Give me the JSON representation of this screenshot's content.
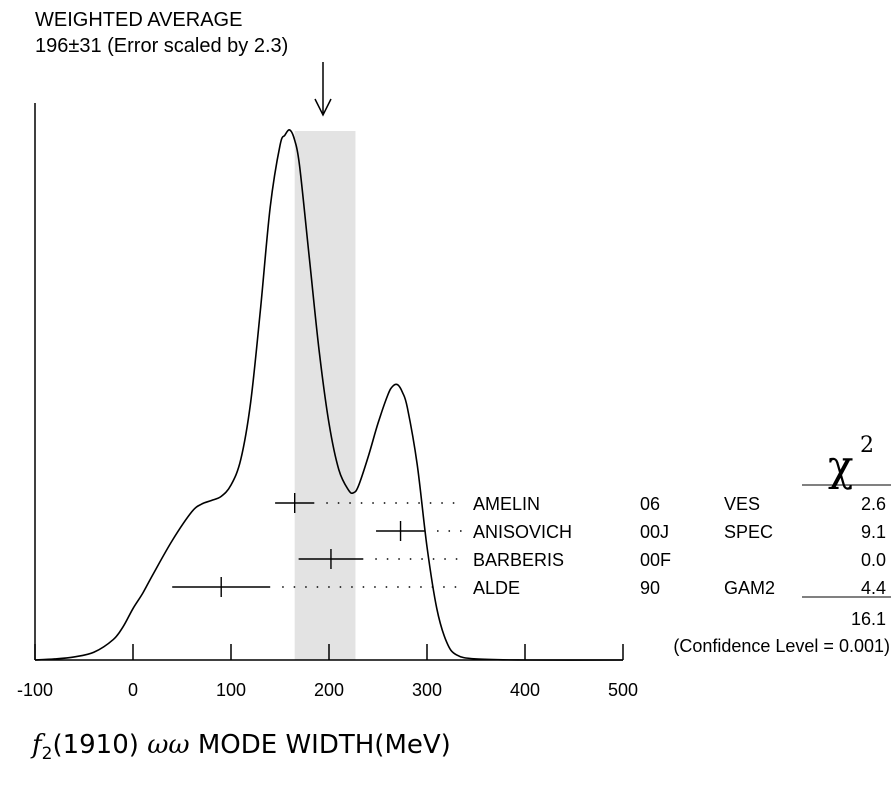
{
  "chart_data": {
    "type": "ideogram",
    "title": "WEIGHTED AVERAGE",
    "subtitle": "196±31 (Error scaled by 2.3)",
    "xlabel": {
      "particle_symbol": "f",
      "particle_subscript": "2",
      "particle_mass": "(1910)",
      "mode": "ωω",
      "text": "MODE WIDTH(MeV)"
    },
    "xlim": [
      -100,
      500
    ],
    "x_ticks": [
      -100,
      0,
      100,
      200,
      300,
      400,
      500
    ],
    "x_tick_labels": [
      "-100",
      "0",
      "100",
      "200",
      "300",
      "400",
      "500"
    ],
    "weighted_average": {
      "value": 196,
      "error": 31,
      "band": [
        165,
        227
      ]
    },
    "chi2_header": "χ",
    "chi2_exponent": "2",
    "measurements": [
      {
        "author": "AMELIN",
        "year": "06",
        "experiment": "VES",
        "value": 165,
        "error": 20,
        "chi2": "2.6"
      },
      {
        "author": "ANISOVICH",
        "year": "00J",
        "experiment": "SPEC",
        "value": 273,
        "error": 25,
        "chi2": "9.1"
      },
      {
        "author": "BARBERIS",
        "year": "00F",
        "experiment": "",
        "value": 202,
        "error": 33,
        "chi2": "0.0"
      },
      {
        "author": "ALDE",
        "year": "90",
        "experiment": "GAM2",
        "value": 90,
        "error": 50,
        "chi2": "4.4"
      }
    ],
    "chi2_total": "16.1",
    "confidence_level_text": "(Confidence Level = 0.001)",
    "curve_samples": [
      [
        -100,
        0.0
      ],
      [
        -80,
        0.002
      ],
      [
        -60,
        0.006
      ],
      [
        -40,
        0.015
      ],
      [
        -20,
        0.04
      ],
      [
        -10,
        0.065
      ],
      [
        0,
        0.1
      ],
      [
        10,
        0.13
      ],
      [
        20,
        0.165
      ],
      [
        40,
        0.232
      ],
      [
        60,
        0.288
      ],
      [
        70,
        0.303
      ],
      [
        80,
        0.31
      ],
      [
        90,
        0.318
      ],
      [
        100,
        0.34
      ],
      [
        110,
        0.39
      ],
      [
        120,
        0.5
      ],
      [
        130,
        0.68
      ],
      [
        140,
        0.88
      ],
      [
        150,
        1.0
      ],
      [
        155,
        1.02
      ],
      [
        160,
        1.03
      ],
      [
        165,
        1.01
      ],
      [
        170,
        0.96
      ],
      [
        180,
        0.78
      ],
      [
        190,
        0.6
      ],
      [
        200,
        0.46
      ],
      [
        210,
        0.37
      ],
      [
        220,
        0.33
      ],
      [
        225,
        0.325
      ],
      [
        230,
        0.338
      ],
      [
        240,
        0.395
      ],
      [
        250,
        0.46
      ],
      [
        260,
        0.515
      ],
      [
        265,
        0.532
      ],
      [
        270,
        0.535
      ],
      [
        275,
        0.52
      ],
      [
        280,
        0.49
      ],
      [
        290,
        0.38
      ],
      [
        300,
        0.22
      ],
      [
        310,
        0.1
      ],
      [
        320,
        0.035
      ],
      [
        330,
        0.01
      ],
      [
        350,
        0.002
      ],
      [
        400,
        0.0
      ],
      [
        500,
        0.0
      ]
    ]
  }
}
